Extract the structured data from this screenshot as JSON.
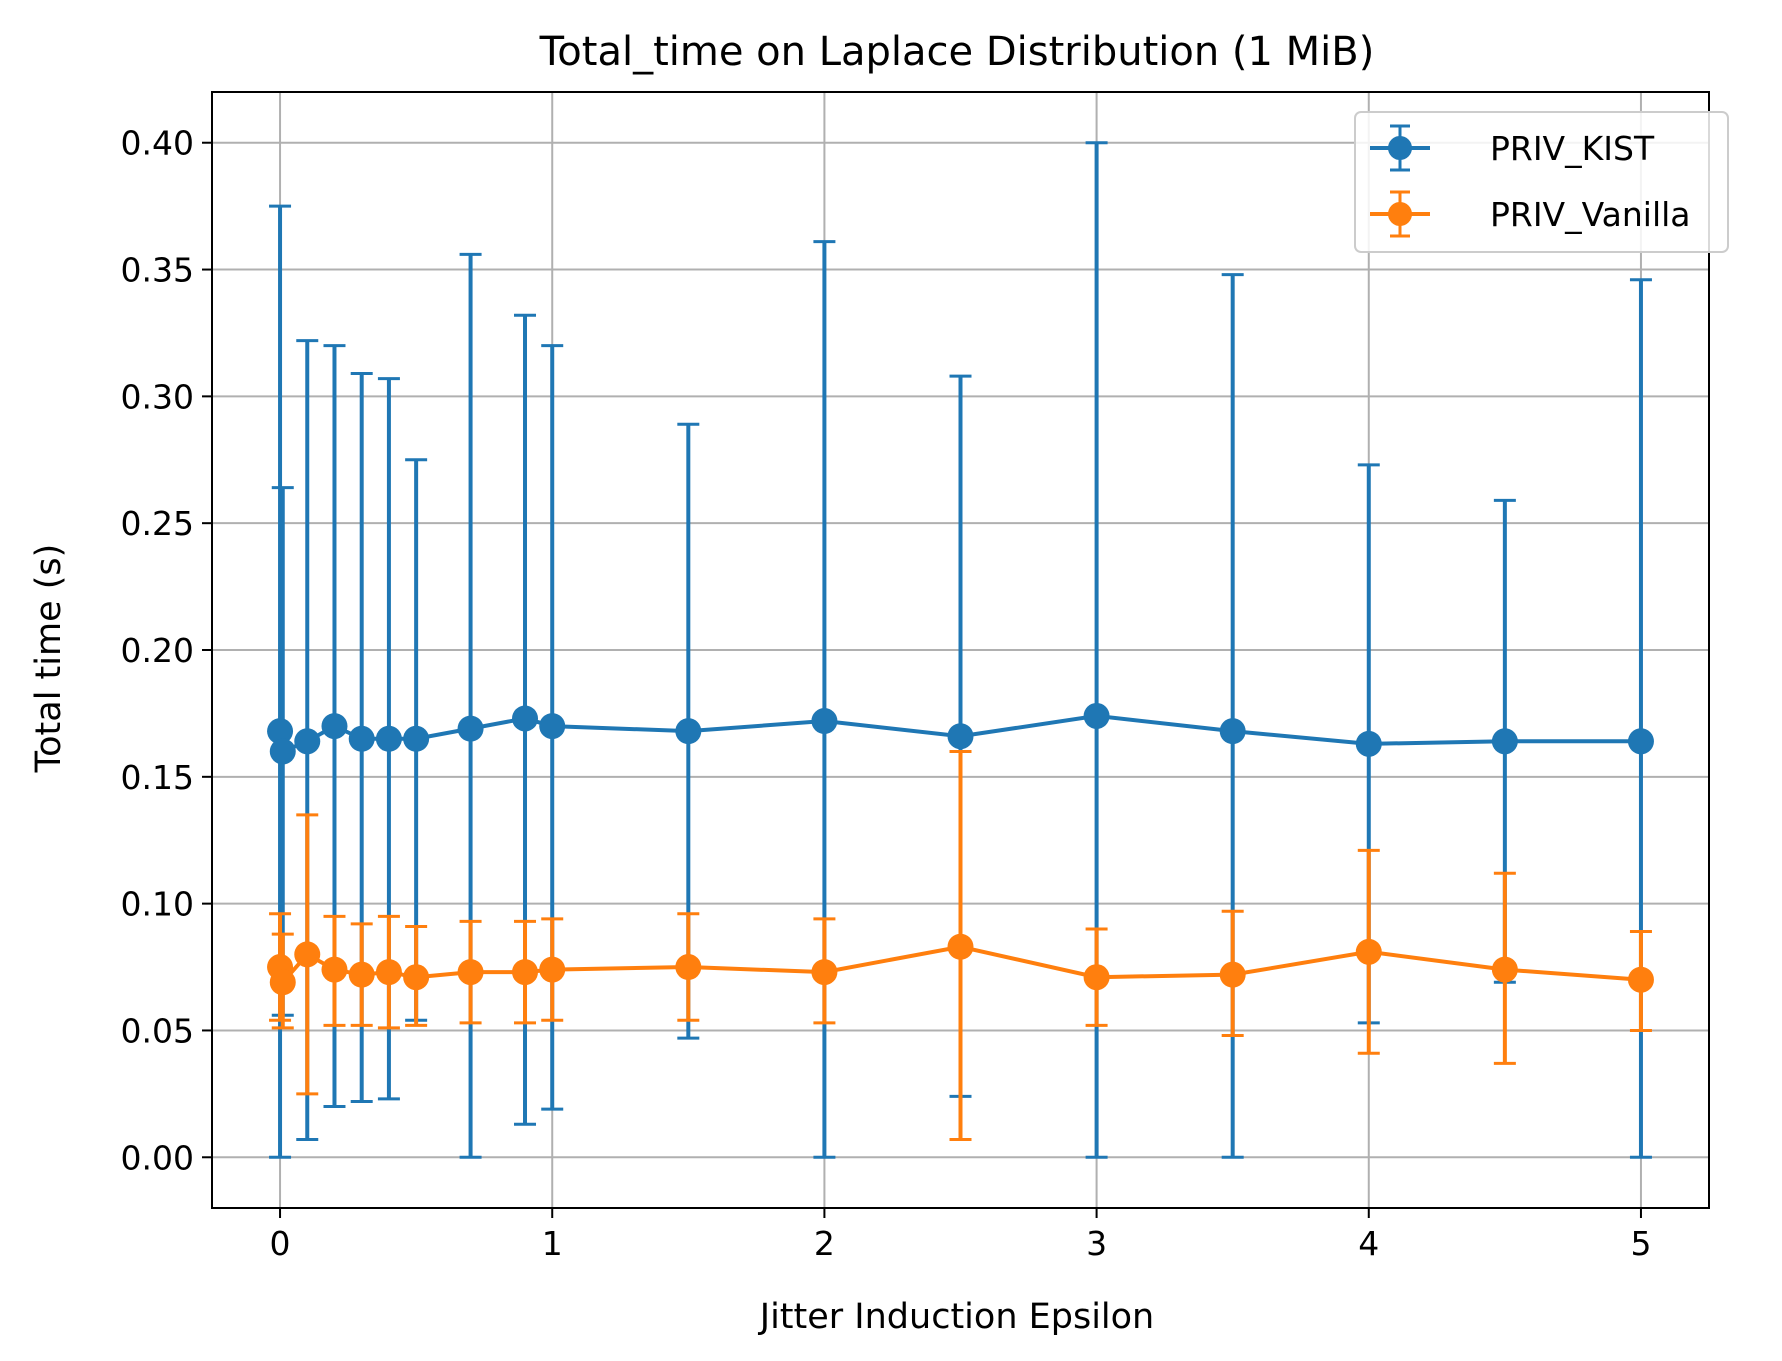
{
  "chart_data": {
    "type": "line",
    "title": "Total_time on Laplace Distribution (1 MiB)",
    "xlabel": "Jitter Induction Epsilon",
    "ylabel": "Total time (s)",
    "xlim": [
      -0.25,
      5.25
    ],
    "ylim": [
      -0.02,
      0.42
    ],
    "xticks": [
      0,
      1,
      2,
      3,
      4,
      5
    ],
    "xtick_labels": [
      "0",
      "1",
      "2",
      "3",
      "4",
      "5"
    ],
    "yticks": [
      0.0,
      0.05,
      0.1,
      0.15,
      0.2,
      0.25,
      0.3,
      0.35,
      0.4
    ],
    "ytick_labels": [
      "0.00",
      "0.05",
      "0.10",
      "0.15",
      "0.20",
      "0.25",
      "0.30",
      "0.35",
      "0.40"
    ],
    "grid": true,
    "legend_position": "top-right",
    "error_bars": true,
    "series": [
      {
        "name": "PRIV_KIST",
        "color": "#1f77b4",
        "x": [
          0.0,
          0.01,
          0.1,
          0.2,
          0.3,
          0.4,
          0.5,
          0.7,
          0.9,
          1.0,
          1.5,
          2.0,
          2.5,
          3.0,
          3.5,
          4.0,
          4.5,
          5.0
        ],
        "y": [
          0.168,
          0.16,
          0.164,
          0.17,
          0.165,
          0.165,
          0.165,
          0.169,
          0.173,
          0.17,
          0.168,
          0.172,
          0.166,
          0.174,
          0.168,
          0.163,
          0.164,
          0.164
        ],
        "y_low": [
          0.0,
          0.056,
          0.007,
          0.02,
          0.022,
          0.023,
          0.054,
          0.0,
          0.013,
          0.019,
          0.047,
          0.0,
          0.024,
          0.0,
          0.0,
          0.053,
          0.069,
          0.0
        ],
        "y_high": [
          0.375,
          0.264,
          0.322,
          0.32,
          0.309,
          0.307,
          0.275,
          0.356,
          0.332,
          0.32,
          0.289,
          0.361,
          0.308,
          0.4,
          0.348,
          0.273,
          0.259,
          0.346
        ]
      },
      {
        "name": "PRIV_Vanilla",
        "color": "#ff7f0e",
        "x": [
          0.0,
          0.01,
          0.1,
          0.2,
          0.3,
          0.4,
          0.5,
          0.7,
          0.9,
          1.0,
          1.5,
          2.0,
          2.5,
          3.0,
          3.5,
          4.0,
          4.5,
          5.0
        ],
        "y": [
          0.075,
          0.069,
          0.08,
          0.074,
          0.072,
          0.073,
          0.071,
          0.073,
          0.073,
          0.074,
          0.075,
          0.073,
          0.083,
          0.071,
          0.072,
          0.081,
          0.074,
          0.07
        ],
        "y_low": [
          0.054,
          0.051,
          0.025,
          0.052,
          0.052,
          0.051,
          0.052,
          0.053,
          0.053,
          0.054,
          0.054,
          0.053,
          0.007,
          0.052,
          0.048,
          0.041,
          0.037,
          0.05
        ],
        "y_high": [
          0.096,
          0.088,
          0.135,
          0.095,
          0.092,
          0.095,
          0.091,
          0.093,
          0.093,
          0.094,
          0.096,
          0.094,
          0.16,
          0.09,
          0.097,
          0.121,
          0.112,
          0.089
        ]
      }
    ]
  }
}
